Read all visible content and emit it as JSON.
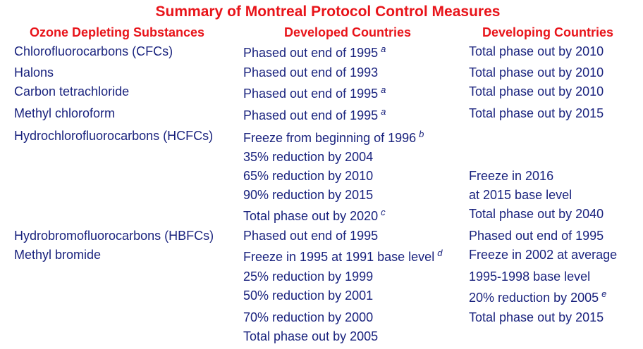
{
  "title": "Summary of Montreal Protocol Control Measures",
  "colors": {
    "heading": "#e8141a",
    "body_text": "#1a237e",
    "background": "#ffffff"
  },
  "headers": {
    "substances": "Ozone Depleting Substances",
    "developed": "Developed Countries",
    "developing": "Developing Countries"
  },
  "substances": [
    "Chlorofluorocarbons (CFCs)",
    "Halons",
    "Carbon tetrachloride",
    "Methyl chloroform",
    "Hydrochlorofluorocarbons (HCFCs)",
    "Hydrobromofluorocarbons (HBFCs)",
    "Methyl bromide"
  ],
  "developed": [
    {
      "text": "Phased out end of 1995",
      "note": "a"
    },
    {
      "text": "Phased out end of 1993",
      "note": ""
    },
    {
      "text": "Phased out end of 1995",
      "note": "a"
    },
    {
      "text": "Phased out end of 1995",
      "note": "a"
    },
    {
      "text": "Freeze from beginning of 1996",
      "note": "b"
    },
    {
      "text": "35% reduction by 2004",
      "note": ""
    },
    {
      "text": "65% reduction by 2010",
      "note": ""
    },
    {
      "text": "90% reduction by 2015",
      "note": ""
    },
    {
      "text": "Total phase out by 2020",
      "note": "c"
    },
    {
      "text": "Phased out end of 1995",
      "note": ""
    },
    {
      "text": "Freeze in 1995 at 1991 base level",
      "note": "d"
    },
    {
      "text": "25% reduction by 1999",
      "note": ""
    },
    {
      "text": "50% reduction by 2001",
      "note": ""
    },
    {
      "text": "70% reduction by 2000",
      "note": ""
    },
    {
      "text": "Total phase out by 2005",
      "note": ""
    }
  ],
  "developing": [
    {
      "text": "Total phase out by 2010",
      "note": ""
    },
    {
      "text": "Total phase out by 2010",
      "note": ""
    },
    {
      "text": "Total phase out by 2010",
      "note": ""
    },
    {
      "text": "Total phase out by 2015",
      "note": ""
    },
    {
      "text": "Freeze in 2016",
      "note": ""
    },
    {
      "text": "at 2015 base level",
      "note": ""
    },
    {
      "text": "Total phase out by 2040",
      "note": ""
    },
    {
      "text": "Phased out end of 1995",
      "note": ""
    },
    {
      "text": "Freeze in 2002 at average",
      "note": ""
    },
    {
      "text": "1995-1998 base level",
      "note": ""
    },
    {
      "text": "20% reduction by 2005",
      "note": "e"
    },
    {
      "text": "Total phase out by 2015",
      "note": ""
    }
  ]
}
